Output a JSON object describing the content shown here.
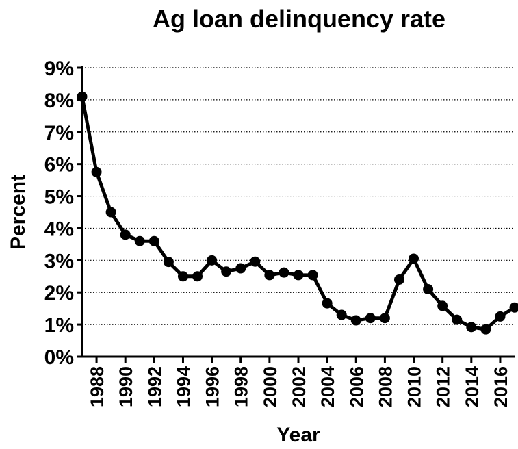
{
  "chart_data": {
    "type": "line",
    "title": "Ag loan delinquency rate",
    "x_label": "Year",
    "y_label": "Percent",
    "x": [
      1987,
      1988,
      1989,
      1990,
      1991,
      1992,
      1993,
      1994,
      1995,
      1996,
      1997,
      1998,
      1999,
      2000,
      2001,
      2002,
      2003,
      2004,
      2005,
      2006,
      2007,
      2008,
      2009,
      2010,
      2011,
      2012,
      2013,
      2014,
      2015,
      2016,
      2017
    ],
    "series": [
      {
        "color": "#000000",
        "values": [
          8.1,
          5.75,
          4.5,
          3.8,
          3.6,
          3.6,
          2.95,
          2.5,
          2.5,
          3.0,
          2.65,
          2.75,
          2.96,
          2.54,
          2.62,
          2.54,
          2.54,
          1.66,
          1.3,
          1.13,
          1.2,
          1.2,
          2.4,
          3.05,
          2.1,
          1.58,
          1.15,
          0.92,
          0.85,
          1.25,
          1.53
        ]
      }
    ],
    "xlim": [
      1987,
      2017
    ],
    "xticks": [
      1988,
      1990,
      1992,
      1994,
      1996,
      1998,
      2000,
      2002,
      2004,
      2006,
      2008,
      2010,
      2012,
      2014,
      2016
    ],
    "ylim": [
      0,
      9
    ],
    "yticks": [
      {
        "value": 0,
        "label": "0%"
      },
      {
        "value": 1,
        "label": "1%"
      },
      {
        "value": 2,
        "label": "2%"
      },
      {
        "value": 3,
        "label": "3%"
      },
      {
        "value": 4,
        "label": "4%"
      },
      {
        "value": 5,
        "label": "5%"
      },
      {
        "value": 6,
        "label": "6%"
      },
      {
        "value": 7,
        "label": "7%"
      },
      {
        "value": 8,
        "label": "8%"
      },
      {
        "value": 9,
        "label": "9%"
      }
    ],
    "grid": true
  }
}
